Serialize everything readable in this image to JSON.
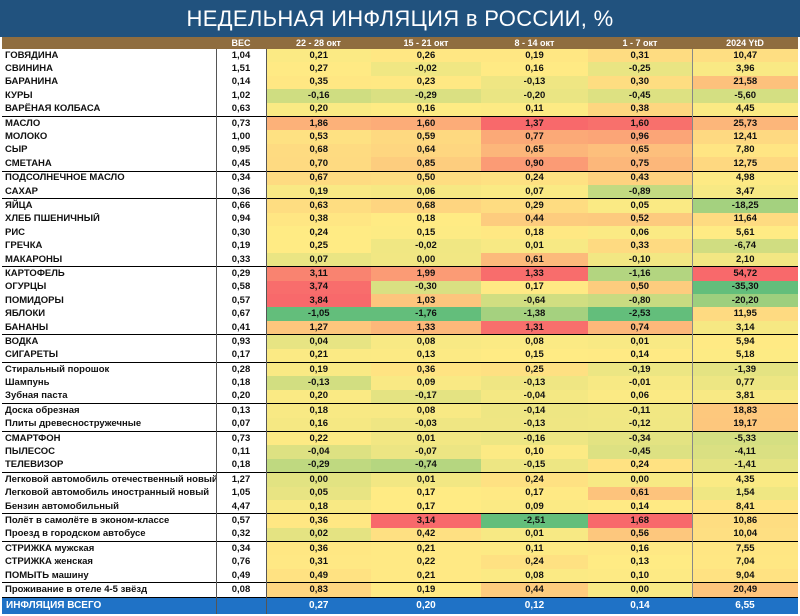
{
  "title": "НЕДЕЛЬНАЯ ИНФЛЯЦИЯ в РОССИИ, %",
  "columns": [
    "",
    "ВЕС",
    "22 - 28 окт",
    "15 - 21 окт",
    "8 - 14 окт",
    "1 - 7 окт",
    "2024 YtD"
  ],
  "chart_data": {
    "type": "table",
    "title": "НЕДЕЛЬНАЯ ИНФЛЯЦИЯ в РОССИИ, %",
    "columns": [
      "",
      "ВЕС",
      "22 - 28 окт",
      "15 - 21 окт",
      "8 - 14 окт",
      "1 - 7 окт",
      "2024 YtD"
    ],
    "rows": [
      {
        "name": "ГОВЯДИНА",
        "values": [
          "1,04",
          "0,21",
          "0,26",
          "0,19",
          "0,31",
          "10,47"
        ]
      },
      {
        "name": "СВИНИНА",
        "values": [
          "1,51",
          "0,27",
          "-0,02",
          "0,16",
          "-0,25",
          "3,96"
        ]
      },
      {
        "name": "БАРАНИНА",
        "values": [
          "0,14",
          "0,35",
          "0,23",
          "-0,13",
          "0,30",
          "21,58"
        ]
      },
      {
        "name": "КУРЫ",
        "values": [
          "1,02",
          "-0,16",
          "-0,29",
          "-0,20",
          "-0,45",
          "-5,60"
        ]
      },
      {
        "name": "ВАРЁНАЯ КОЛБАСА",
        "values": [
          "0,63",
          "0,20",
          "0,16",
          "0,11",
          "0,38",
          "4,45"
        ]
      },
      {
        "name": "МАСЛО",
        "values": [
          "0,73",
          "1,86",
          "1,60",
          "1,37",
          "1,60",
          "25,73"
        ]
      },
      {
        "name": "МОЛОКО",
        "values": [
          "1,00",
          "0,53",
          "0,59",
          "0,77",
          "0,96",
          "12,41"
        ]
      },
      {
        "name": "СЫР",
        "values": [
          "0,95",
          "0,68",
          "0,64",
          "0,65",
          "0,65",
          "7,80"
        ]
      },
      {
        "name": "СМЕТАНА",
        "values": [
          "0,45",
          "0,70",
          "0,85",
          "0,90",
          "0,75",
          "12,75"
        ]
      },
      {
        "name": "ПОДСОЛНЕЧНОЕ МАСЛО",
        "values": [
          "0,34",
          "0,67",
          "0,50",
          "0,24",
          "0,43",
          "4,98"
        ]
      },
      {
        "name": "САХАР",
        "values": [
          "0,36",
          "0,19",
          "0,06",
          "0,07",
          "-0,89",
          "3,47"
        ]
      },
      {
        "name": "ЯЙЦА",
        "values": [
          "0,66",
          "0,63",
          "0,68",
          "0,29",
          "0,05",
          "-18,25"
        ]
      },
      {
        "name": "ХЛЕБ ПШЕНИЧНЫЙ",
        "values": [
          "0,94",
          "0,38",
          "0,18",
          "0,44",
          "0,52",
          "11,64"
        ]
      },
      {
        "name": "РИС",
        "values": [
          "0,30",
          "0,24",
          "0,15",
          "0,18",
          "0,06",
          "5,61"
        ]
      },
      {
        "name": "ГРЕЧКА",
        "values": [
          "0,19",
          "0,25",
          "-0,02",
          "0,01",
          "0,33",
          "-6,74"
        ]
      },
      {
        "name": "МАКАРОНЫ",
        "values": [
          "0,33",
          "0,07",
          "0,00",
          "0,61",
          "-0,10",
          "2,10"
        ]
      },
      {
        "name": "КАРТОФЕЛЬ",
        "values": [
          "0,29",
          "3,11",
          "1,99",
          "1,33",
          "-1,16",
          "54,72"
        ]
      },
      {
        "name": "ОГУРЦЫ",
        "values": [
          "0,58",
          "3,74",
          "-0,30",
          "0,17",
          "0,50",
          "-35,30"
        ]
      },
      {
        "name": "ПОМИДОРЫ",
        "values": [
          "0,57",
          "3,84",
          "1,03",
          "-0,64",
          "-0,80",
          "-20,20"
        ]
      },
      {
        "name": "ЯБЛОКИ",
        "values": [
          "0,67",
          "-1,05",
          "-1,76",
          "-1,38",
          "-2,53",
          "11,95"
        ]
      },
      {
        "name": "БАНАНЫ",
        "values": [
          "0,41",
          "1,27",
          "1,33",
          "1,31",
          "0,74",
          "3,14"
        ]
      },
      {
        "name": "ВОДКА",
        "values": [
          "0,93",
          "0,04",
          "0,08",
          "0,08",
          "0,01",
          "5,94"
        ]
      },
      {
        "name": "СИГАРЕТЫ",
        "values": [
          "0,17",
          "0,21",
          "0,13",
          "0,15",
          "0,14",
          "5,18"
        ]
      },
      {
        "name": "Стиральный порошок",
        "values": [
          "0,28",
          "0,19",
          "0,36",
          "0,25",
          "-0,19",
          "-1,39"
        ]
      },
      {
        "name": "Шампунь",
        "values": [
          "0,18",
          "-0,13",
          "0,09",
          "-0,13",
          "-0,01",
          "0,77"
        ]
      },
      {
        "name": "Зубная паста",
        "values": [
          "0,20",
          "0,20",
          "-0,17",
          "-0,04",
          "0,06",
          "3,81"
        ]
      },
      {
        "name": "Доска обрезная",
        "values": [
          "0,13",
          "0,18",
          "0,08",
          "-0,14",
          "-0,11",
          "18,83"
        ]
      },
      {
        "name": "Плиты древесностружечные",
        "values": [
          "0,07",
          "0,16",
          "-0,03",
          "-0,13",
          "-0,12",
          "19,17"
        ]
      },
      {
        "name": "СМАРТФОН",
        "values": [
          "0,73",
          "0,22",
          "0,01",
          "-0,16",
          "-0,34",
          "-5,33"
        ]
      },
      {
        "name": "ПЫЛЕСОС",
        "values": [
          "0,11",
          "-0,04",
          "-0,07",
          "0,10",
          "-0,45",
          "-4,11"
        ]
      },
      {
        "name": "ТЕЛЕВИЗОР",
        "values": [
          "0,18",
          "-0,29",
          "-0,74",
          "-0,15",
          "0,24",
          "-1,41"
        ]
      },
      {
        "name": "Легковой автомобиль отечественный новый",
        "values": [
          "1,27",
          "0,00",
          "0,01",
          "0,24",
          "0,00",
          "4,35"
        ]
      },
      {
        "name": "Легковой автомобиль иностранный новый",
        "values": [
          "1,05",
          "0,05",
          "0,17",
          "0,17",
          "0,61",
          "1,54"
        ]
      },
      {
        "name": "Бензин автомобильный",
        "values": [
          "4,47",
          "0,18",
          "0,17",
          "0,09",
          "0,14",
          "8,41"
        ]
      },
      {
        "name": "Полёт в самолёте в эконом-классе",
        "values": [
          "0,57",
          "0,36",
          "3,14",
          "-2,51",
          "1,68",
          "10,86"
        ]
      },
      {
        "name": "Проезд в городском автобусе",
        "values": [
          "0,32",
          "0,02",
          "0,42",
          "0,01",
          "0,56",
          "10,04"
        ]
      },
      {
        "name": "СТРИЖКА мужская",
        "values": [
          "0,34",
          "0,36",
          "0,21",
          "0,11",
          "0,16",
          "7,55"
        ]
      },
      {
        "name": "СТРИЖКА женская",
        "values": [
          "0,76",
          "0,31",
          "0,22",
          "0,24",
          "0,13",
          "7,04"
        ]
      },
      {
        "name": "ПОМЫТЬ машину",
        "values": [
          "0,49",
          "0,49",
          "0,21",
          "0,08",
          "0,10",
          "9,04"
        ]
      },
      {
        "name": "Проживание в отеле 4-5 звёзд",
        "values": [
          "0,08",
          "0,83",
          "0,19",
          "0,44",
          "0,00",
          "20,49"
        ]
      }
    ],
    "total": {
      "name": "ИНФЛЯЦИЯ ВСЕГО",
      "values": [
        "",
        "0,27",
        "0,20",
        "0,12",
        "0,14",
        "6,55"
      ]
    },
    "group_separators_before_rows": [
      5,
      9,
      11,
      16,
      21,
      23,
      26,
      28,
      31,
      34,
      36,
      39
    ],
    "colors": {
      "header_bg": "#8f6d3f",
      "title_bg": "#21527e",
      "total_bg": "#1f72c6",
      "scale_low": "#63be7b",
      "scale_mid": "#ffeb84",
      "scale_high": "#f8696b"
    }
  }
}
